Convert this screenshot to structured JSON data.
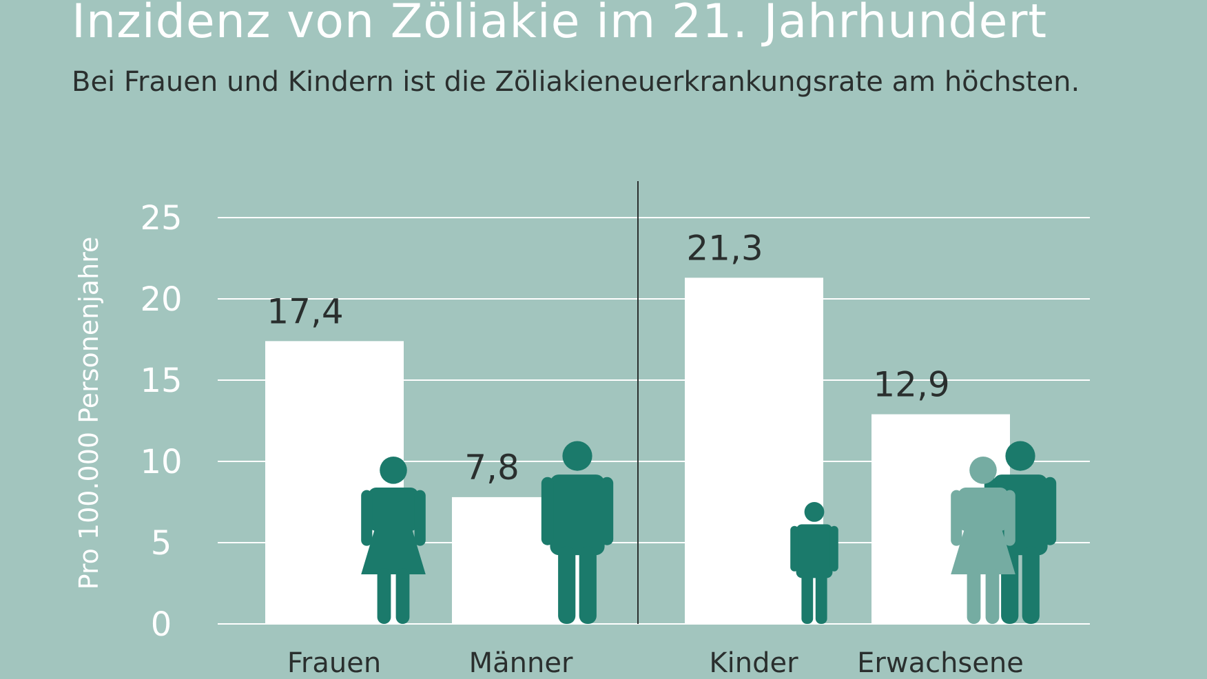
{
  "title": "Inzidenz von Zöliakie im 21. Jahrhundert",
  "subtitle": "Bei Frauen und Kindern ist die Zöliakieneuerkrankungsrate am höchsten.",
  "chart_data": {
    "type": "bar",
    "title": "Inzidenz von Zöliakie im 21. Jahrhundert",
    "subtitle": "Bei Frauen und Kindern ist die Zöliakieneuerkrankungsrate am höchsten.",
    "ylabel": "Pro 100.000 Personenjahre",
    "xlabel": "",
    "ylim": [
      0,
      25
    ],
    "yticks": [
      0,
      5,
      10,
      15,
      20,
      25
    ],
    "ytick_labels": [
      "0",
      "5",
      "10",
      "15",
      "20",
      "25"
    ],
    "grid": true,
    "categories": [
      "Frauen",
      "Männer",
      "Kinder",
      "Erwachsene"
    ],
    "values": [
      17.4,
      7.8,
      21.3,
      12.9
    ],
    "value_labels": [
      "17,4",
      "7,8",
      "21,3",
      "12,9"
    ],
    "groups": [
      [
        "Frauen",
        "Männer"
      ],
      [
        "Kinder",
        "Erwachsene"
      ]
    ],
    "icons": [
      "woman-icon",
      "man-icon",
      "child-icon",
      "adults-icon"
    ],
    "colors": {
      "background": "#a2c5be",
      "bar": "#ffffff",
      "grid": "#ffffff",
      "icon_dark": "#1b7a6b",
      "icon_light": "#75aca2",
      "text_dark": "#2a2f2e",
      "text_light": "#ffffff"
    }
  }
}
